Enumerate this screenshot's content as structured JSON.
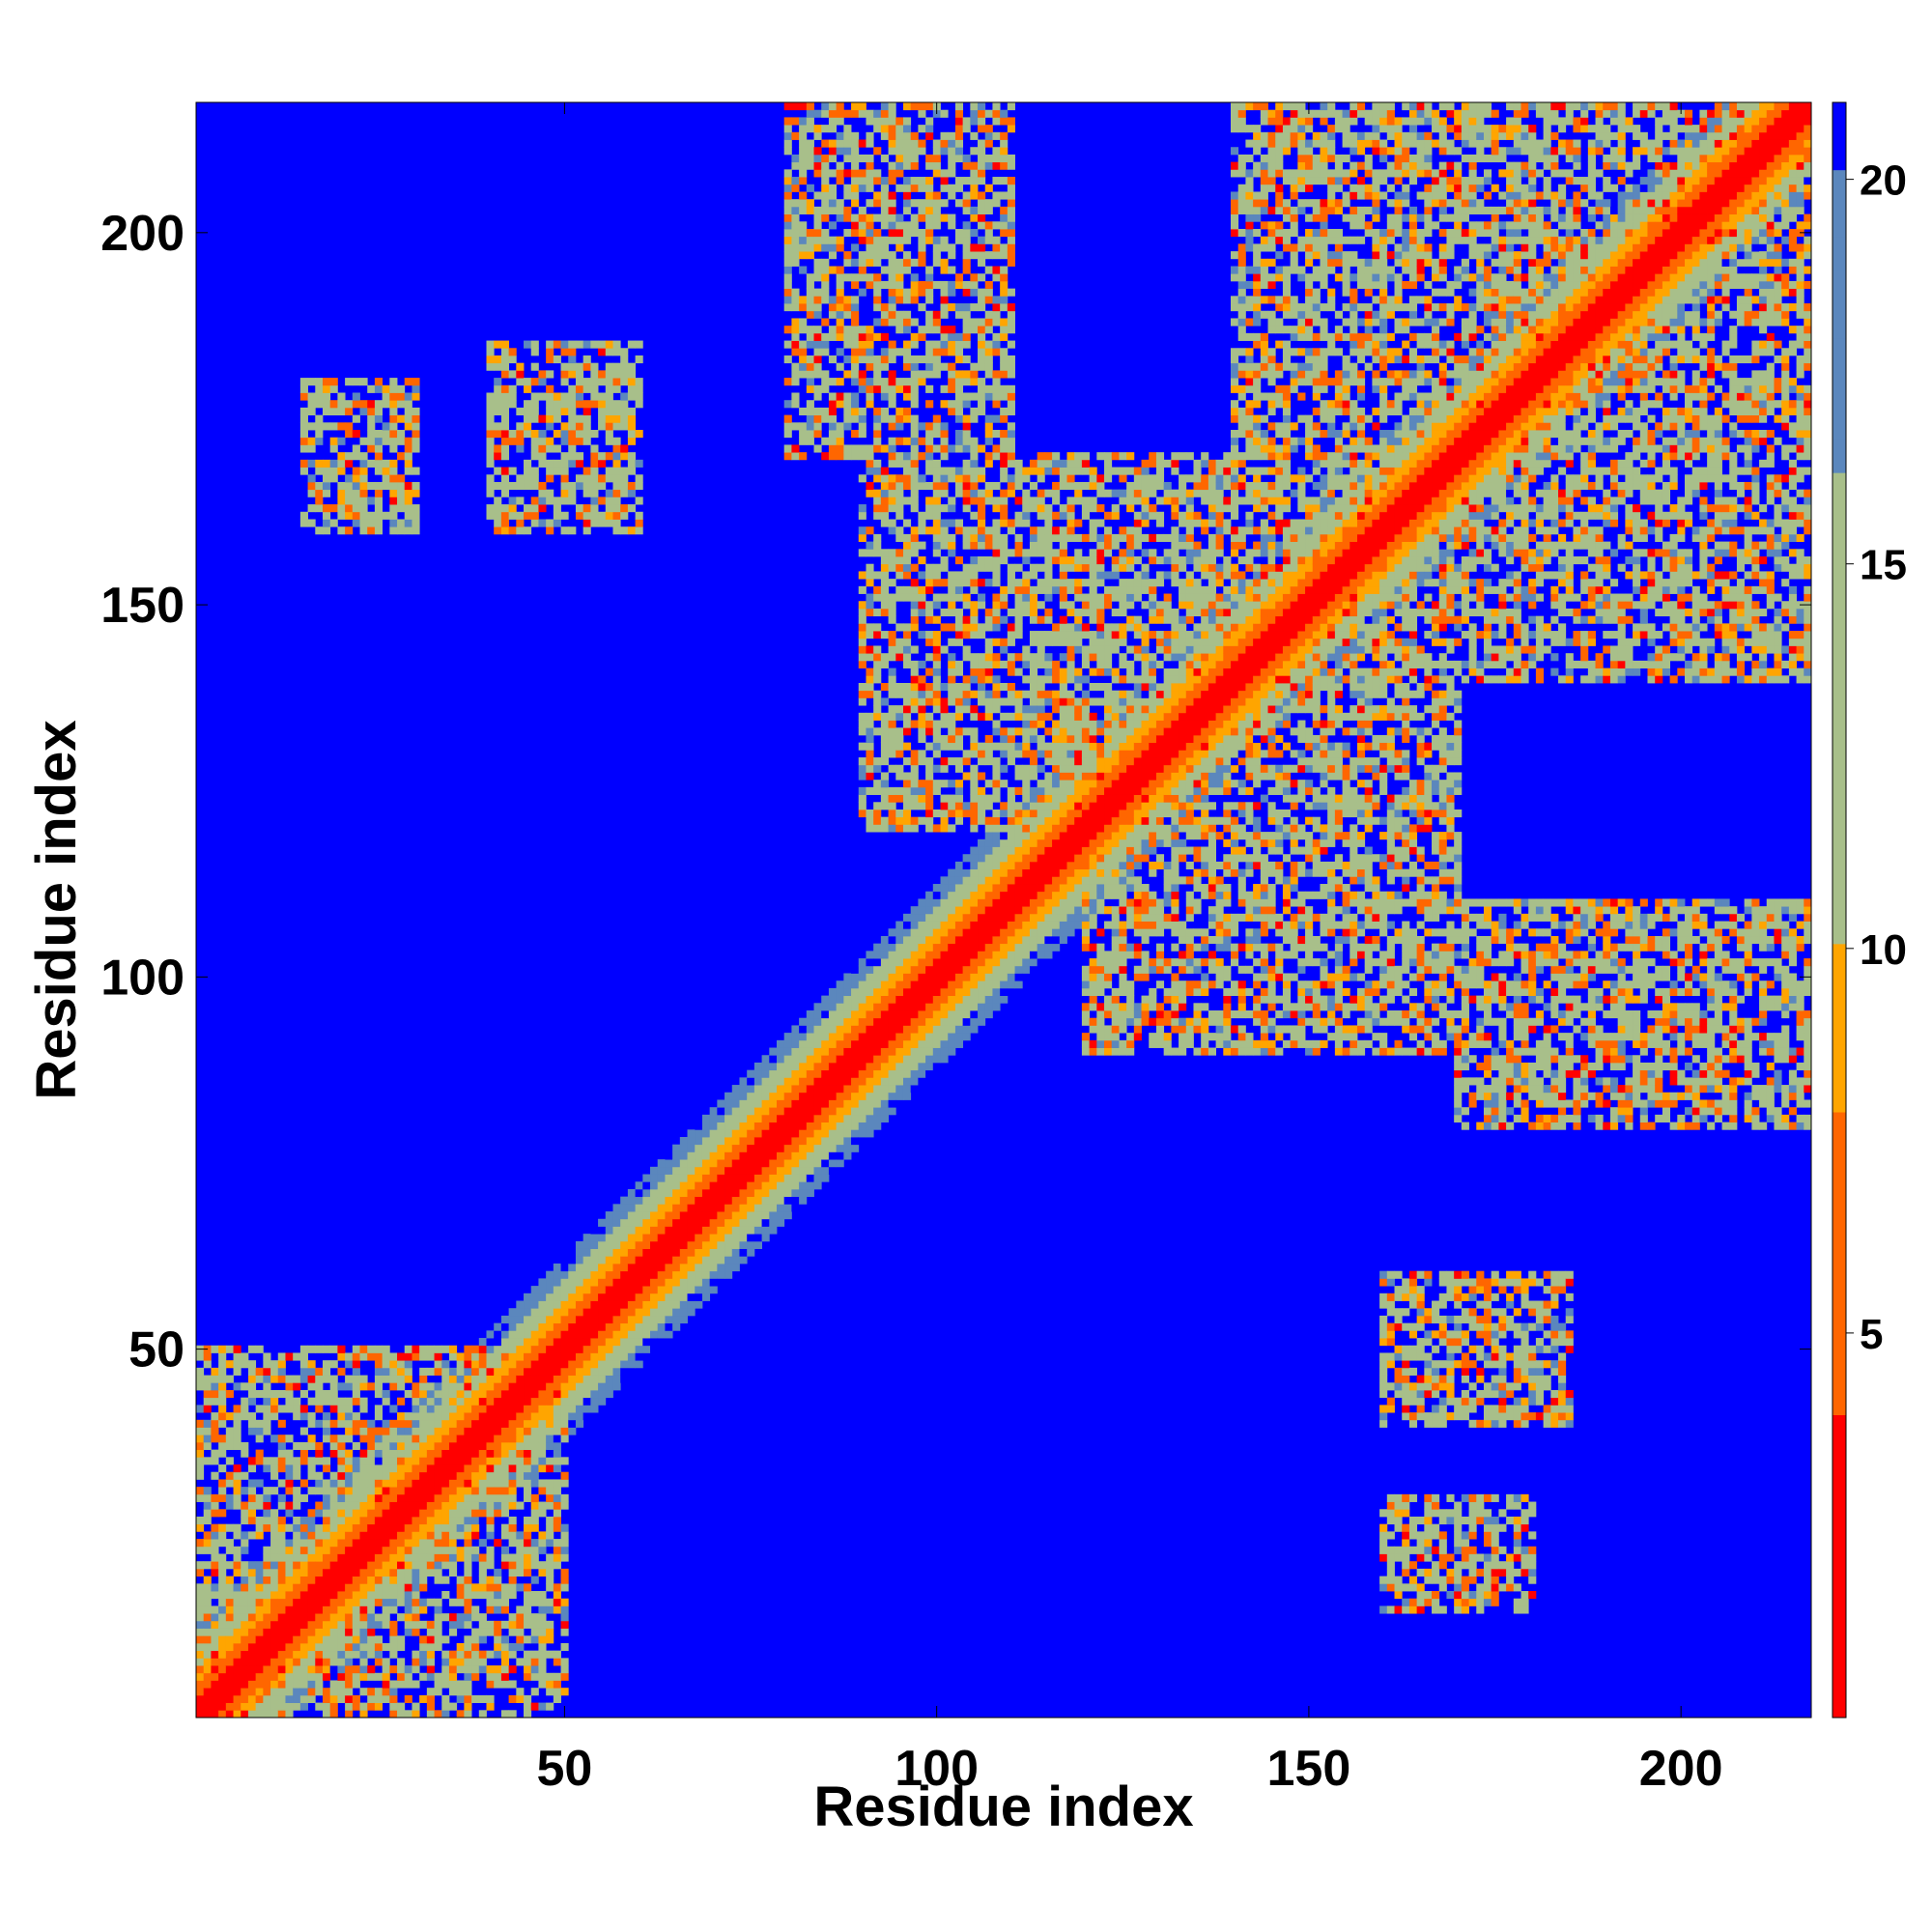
{
  "chart_data": {
    "type": "heatmap",
    "title": "",
    "xlabel": "Residue index",
    "ylabel": "Residue index",
    "xlim": [
      1,
      217
    ],
    "ylim": [
      1,
      217
    ],
    "x_ticks": [
      "50",
      "100",
      "150",
      "200"
    ],
    "y_ticks": [
      "50",
      "100",
      "150",
      "200"
    ],
    "x_tick_values": [
      50,
      100,
      150,
      200
    ],
    "y_tick_values": [
      50,
      100,
      150,
      200
    ],
    "colorbar": {
      "range": [
        0,
        21
      ],
      "ticks": [
        "5",
        "10",
        "15",
        "20"
      ],
      "tick_values": [
        5,
        10,
        15,
        20
      ],
      "colors": [
        "#ff0000",
        "#ff6600",
        "#ffa500",
        "#a8bf8a",
        "#5b87bd",
        "#0000ff"
      ],
      "stops": [
        0,
        4,
        8,
        10,
        16,
        20
      ]
    },
    "value_description": "Residue-residue distance map: low values (red) along the diagonal, saturated (blue) for distant pairs",
    "structure": {
      "n_residues": 217,
      "diagonal_band": true,
      "contact_regions": [
        {
          "x": [
            1,
            50
          ],
          "y": [
            1,
            50
          ]
        },
        {
          "x": [
            80,
            110
          ],
          "y": [
            170,
            217
          ]
        },
        {
          "x": [
            140,
            217
          ],
          "y": [
            140,
            217
          ]
        },
        {
          "x": [
            90,
            140
          ],
          "y": [
            120,
            170
          ]
        },
        {
          "x": [
            160,
            180
          ],
          "y": [
            40,
            60
          ]
        },
        {
          "x": [
            160,
            175
          ],
          "y": [
            15,
            30
          ]
        },
        {
          "x": [
            180,
            217
          ],
          "y": [
            80,
            110
          ]
        },
        {
          "x": [
            40,
            60
          ],
          "y": [
            160,
            185
          ]
        },
        {
          "x": [
            15,
            30
          ],
          "y": [
            160,
            180
          ]
        }
      ]
    }
  }
}
